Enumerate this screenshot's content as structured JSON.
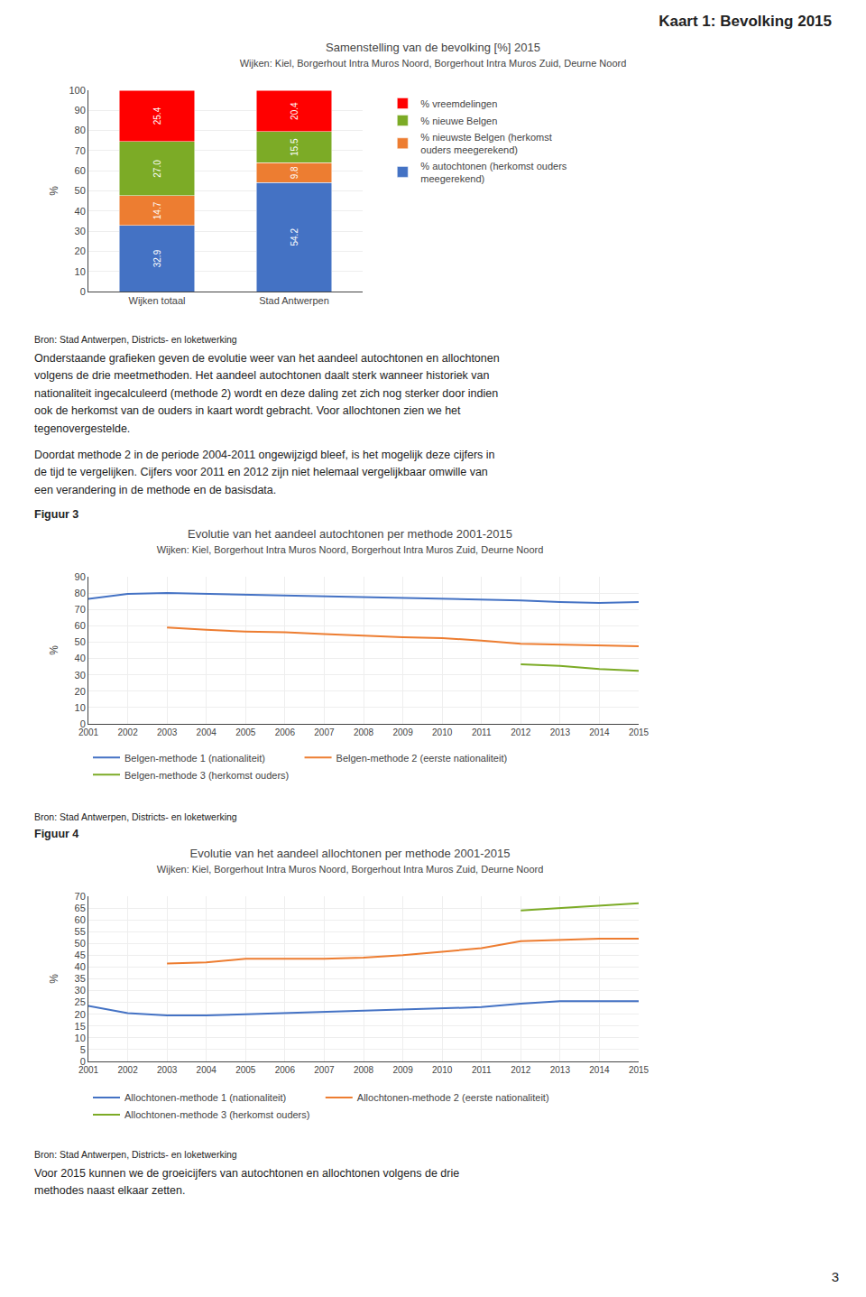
{
  "title": "Kaart 1: Bevolking 2015",
  "annotations": [
    "Onderstaande grafieken geven de evolutie weer van het aandeel autochtonen en allochtonen\nvolgens de drie meetmethoden. Het aandeel autochtonen daalt sterk wanneer historiek van\nnationaliteit ingecalculeerd (methode 2) wordt en deze daling zet zich nog sterker door indien\nook de herkomst van de ouders in kaart wordt gebracht. Voor allochtonen zien we het\ntegenovergestelde.",
    "Doordat methode 2 in de periode 2004-2011 ongewijzigd bleef, is het mogelijk deze cijfers in\nde tijd te vergelijken. Cijfers voor 2011 en 2012 zijn niet helemaal vergelijkbaar omwille van\neen verandering in de methode en de basisdata.",
    "Voor 2015  kunnen we de groeicijfers van autochtonen en allochtonen volgens de drie\nmethodes naast elkaar zetten.",
    "3"
  ],
  "chart_data": [
    {
      "type": "bar",
      "title": "Samenstelling van de bevolking [%] 2015",
      "subtitle": "Wijken: Kiel, Borgerhout Intra Muros Noord, Borgerhout Intra Muros Zuid, Deurne Noord",
      "categories": [
        "Wijken totaal",
        "Stad Antwerpen"
      ],
      "stacked": true,
      "data_labels": true,
      "series": [
        {
          "name": "% autochtonen (herkomst ouders\nmeegerekend)",
          "color": "#4472C4",
          "values": [
            32.9,
            54.2
          ],
          "value_labels": [
            "32.9",
            "54.2"
          ]
        },
        {
          "name": "% nieuwste Belgen (herkomst\nouders meegerekend)",
          "color": "#ED7D31",
          "values": [
            14.7,
            9.8
          ],
          "value_labels": [
            "14.7",
            "9.8"
          ]
        },
        {
          "name": "% nieuwe Belgen",
          "color": "#7CAB26",
          "values": [
            27.0,
            15.5
          ],
          "value_labels": [
            "27.0",
            "15.5"
          ]
        },
        {
          "name": "% vreemdelingen",
          "color": "#FF0000",
          "values": [
            25.4,
            20.4
          ],
          "value_labels": [
            "25.4",
            "20.4"
          ]
        }
      ],
      "ylabel": "%",
      "ylim": [
        0,
        100
      ],
      "yticks": [
        0,
        10,
        20,
        30,
        40,
        50,
        60,
        70,
        80,
        90,
        100
      ],
      "grid": true,
      "legend": "right",
      "annotations": [
        "Bron: Stad Antwerpen, Districts- en loketwerking"
      ]
    },
    {
      "type": "line",
      "title": "Evolutie van het aandeel autochtonen per methode 2001-2015",
      "subtitle": "Wijken: Kiel, Borgerhout Intra Muros Noord, Borgerhout Intra Muros Zuid, Deurne Noord",
      "x": [
        2001,
        2002,
        2003,
        2004,
        2005,
        2006,
        2007,
        2008,
        2009,
        2010,
        2011,
        2012,
        2013,
        2014,
        2015
      ],
      "series": [
        {
          "name": "Belgen-methode 1 (nationaliteit)",
          "color": "#4472C4",
          "values": [
            76.5,
            79.5,
            80.0,
            79.5,
            79.0,
            78.5,
            78.0,
            77.5,
            77.0,
            76.5,
            76.0,
            75.5,
            74.5,
            74.0,
            74.5
          ]
        },
        {
          "name": "Belgen-methode 2 (eerste nationaliteit)",
          "color": "#ED7D31",
          "values": [
            null,
            null,
            59.0,
            57.5,
            56.5,
            56.0,
            55.0,
            54.0,
            53.0,
            52.5,
            51.0,
            49.0,
            48.5,
            48.0,
            47.5
          ]
        },
        {
          "name": "Belgen-methode 3 (herkomst ouders)",
          "color": "#7CAB26",
          "values": [
            null,
            null,
            null,
            null,
            null,
            null,
            null,
            null,
            null,
            null,
            null,
            36.5,
            35.5,
            33.5,
            32.5
          ]
        }
      ],
      "ylabel": "%",
      "xlim": [
        2001,
        2015
      ],
      "xticks": [
        2001,
        2002,
        2003,
        2004,
        2005,
        2006,
        2007,
        2008,
        2009,
        2010,
        2011,
        2012,
        2013,
        2014,
        2015
      ],
      "ylim": [
        0,
        90
      ],
      "yticks": [
        0,
        10,
        20,
        30,
        40,
        50,
        60,
        70,
        80,
        90
      ],
      "grid": true,
      "legend": "bottom",
      "annotations": [
        "Figuur 3",
        "Bron: Stad Antwerpen, Districts- en loketwerking"
      ]
    },
    {
      "type": "line",
      "title": "Evolutie van het aandeel allochtonen per methode 2001-2015",
      "subtitle": "Wijken: Kiel, Borgerhout Intra Muros Noord, Borgerhout Intra Muros Zuid, Deurne Noord",
      "x": [
        2001,
        2002,
        2003,
        2004,
        2005,
        2006,
        2007,
        2008,
        2009,
        2010,
        2011,
        2012,
        2013,
        2014,
        2015
      ],
      "series": [
        {
          "name": "Allochtonen-methode 1 (nationaliteit)",
          "color": "#4472C4",
          "values": [
            23.5,
            20.5,
            19.5,
            19.5,
            20.0,
            20.5,
            21.0,
            21.5,
            22.0,
            22.5,
            23.0,
            24.5,
            25.5,
            25.5,
            25.5
          ]
        },
        {
          "name": "Allochtonen-methode 2 (eerste nationaliteit)",
          "color": "#ED7D31",
          "values": [
            null,
            null,
            41.5,
            42.0,
            43.5,
            43.5,
            43.5,
            44.0,
            45.0,
            46.5,
            48.0,
            51.0,
            51.5,
            52.0,
            52.0
          ]
        },
        {
          "name": "Allochtonen-methode 3 (herkomst ouders)",
          "color": "#7CAB26",
          "values": [
            null,
            null,
            null,
            null,
            null,
            null,
            null,
            null,
            null,
            null,
            null,
            64.0,
            65.0,
            66.0,
            67.0
          ]
        }
      ],
      "ylabel": "%",
      "xlim": [
        2001,
        2015
      ],
      "xticks": [
        2001,
        2002,
        2003,
        2004,
        2005,
        2006,
        2007,
        2008,
        2009,
        2010,
        2011,
        2012,
        2013,
        2014,
        2015
      ],
      "ylim": [
        0,
        70
      ],
      "yticks": [
        0,
        5,
        10,
        15,
        20,
        25,
        30,
        35,
        40,
        45,
        50,
        55,
        60,
        65,
        70
      ],
      "grid": true,
      "legend": "bottom",
      "annotations": [
        "Figuur 4",
        "Bron: Stad Antwerpen, Districts- en loketwerking"
      ]
    }
  ]
}
